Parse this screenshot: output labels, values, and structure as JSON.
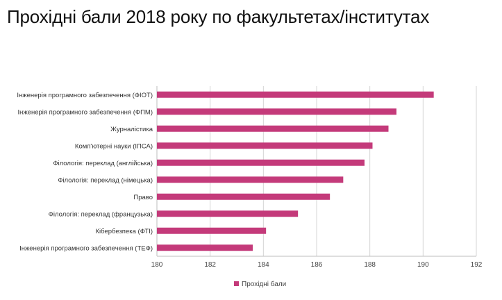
{
  "page": {
    "title": "Прохідні бали 2018 року по факультетах/інститутах"
  },
  "chart_data": {
    "type": "bar",
    "orientation": "horizontal",
    "categories": [
      "Інженерія програмного забезпечення (ФІОТ)",
      "Інженерія програмного забезпечення (ФПМ)",
      "Журналістика",
      "Комп'ютерні науки (ІПСА)",
      "Філологія: переклад (англійська)",
      "Філологія: переклад (німецька)",
      "Право",
      "Філологія: переклад (французька)",
      "Кібербезпека (ФТІ)",
      "Інженерія програмного забезпечення (ТЕФ)"
    ],
    "series": [
      {
        "name": "Прохідні бали",
        "values": [
          190.4,
          189.0,
          188.7,
          188.1,
          187.8,
          187.0,
          186.5,
          185.3,
          184.1,
          183.6
        ]
      }
    ],
    "xlim": [
      180,
      192
    ],
    "xticks": [
      "180",
      "182",
      "184",
      "186",
      "188",
      "190",
      "192"
    ],
    "grid": "vertical",
    "legend": "bottom",
    "bar_color": "#c43a7a",
    "grid_color": "#d4d4d4"
  }
}
